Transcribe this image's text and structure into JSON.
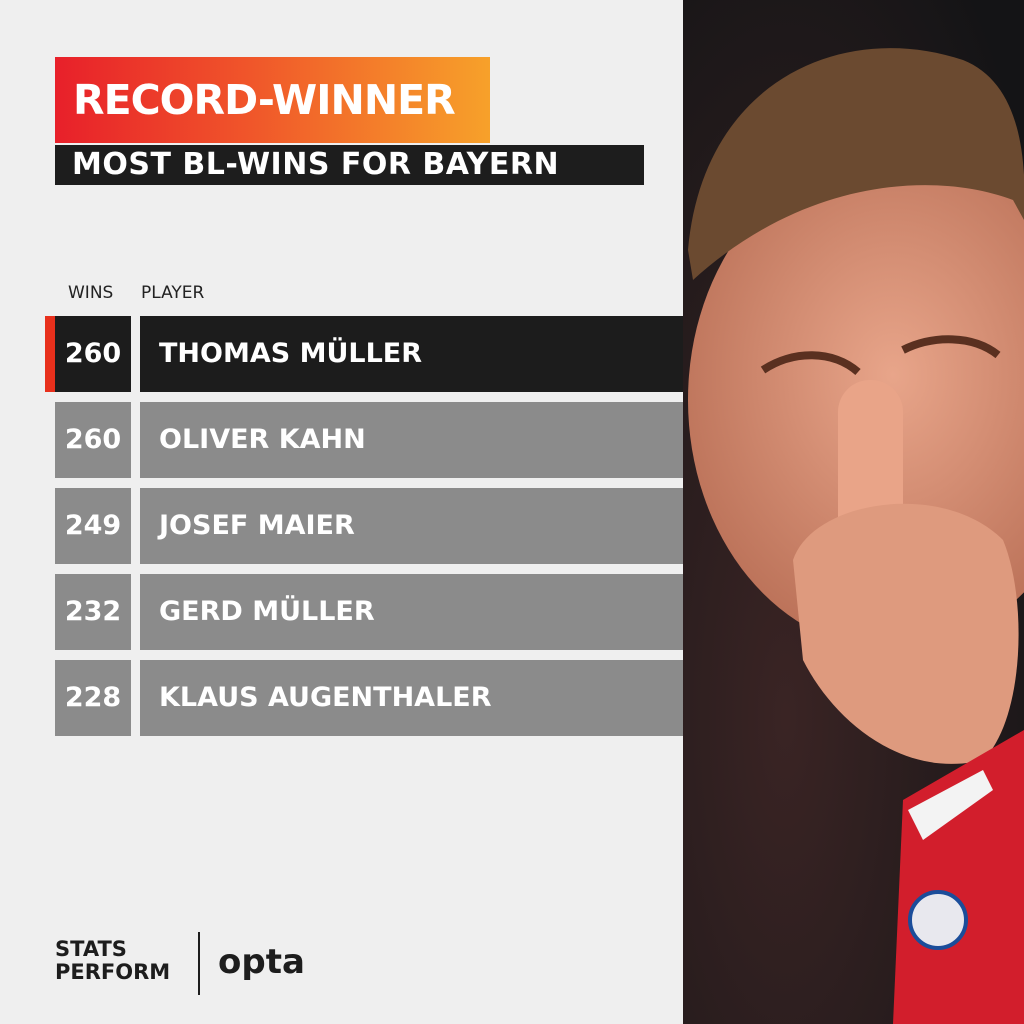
{
  "header": {
    "title": "RECORD-WINNER",
    "subtitle": "MOST BL-WINS FOR BAYERN"
  },
  "table": {
    "columns": [
      "WINS",
      "PLAYER"
    ],
    "rows": [
      [
        260,
        "THOMAS MÜLLER"
      ],
      [
        260,
        "OLIVER KAHN"
      ],
      [
        249,
        "JOSEF MAIER"
      ],
      [
        232,
        "GERD MÜLLER"
      ],
      [
        228,
        "KLAUS AUGENTHALER"
      ]
    ]
  },
  "footer": {
    "logo_left": [
      "STATS",
      "PERFORM"
    ],
    "logo_right": "opta"
  }
}
